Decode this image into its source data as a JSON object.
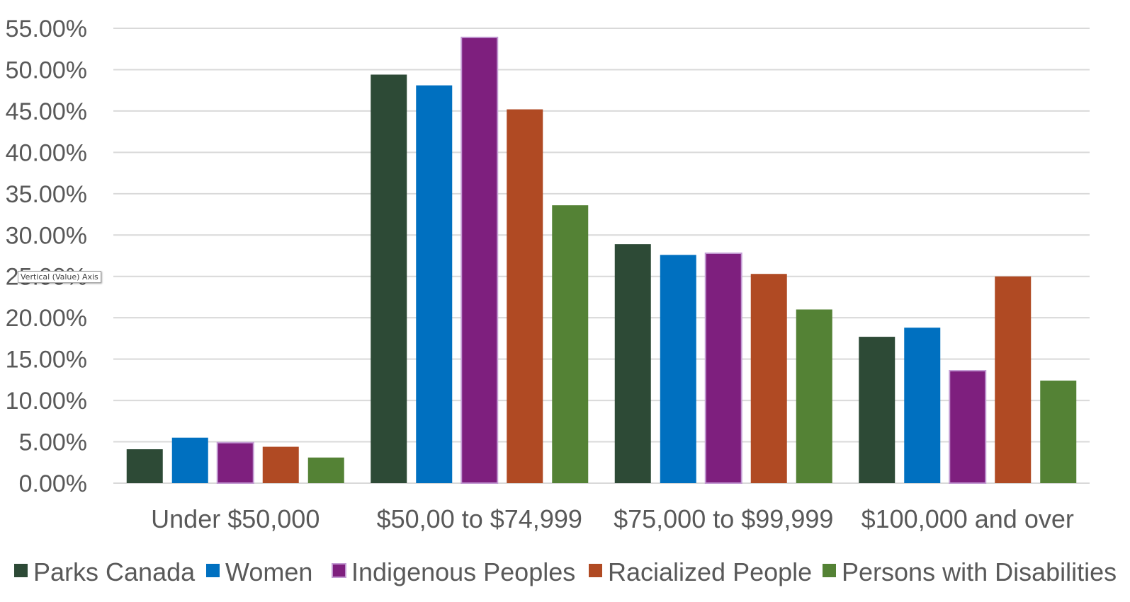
{
  "chart_data": {
    "type": "bar",
    "title": "",
    "xlabel": "",
    "ylabel": "",
    "ylim": [
      0,
      0.55
    ],
    "y_ticks": [
      0,
      0.05,
      0.1,
      0.15,
      0.2,
      0.25,
      0.3,
      0.35,
      0.4,
      0.45,
      0.5,
      0.55
    ],
    "y_tick_labels": [
      "0.00%",
      "5.00%",
      "10.00%",
      "15.00%",
      "20.00%",
      "25.00%",
      "30.00%",
      "35.00%",
      "40.00%",
      "45.00%",
      "50.00%",
      "55.00%"
    ],
    "grid": true,
    "legend_position": "bottom",
    "categories": [
      "Under $50,000",
      "$50,00 to $74,999",
      "$75,000 to $99,999",
      "$100,000 and over"
    ],
    "series": [
      {
        "name": "Parks Canada",
        "color": "#2d4a36",
        "values": [
          0.041,
          0.494,
          0.289,
          0.177
        ]
      },
      {
        "name": "Women",
        "color": "#0070c0",
        "values": [
          0.055,
          0.481,
          0.276,
          0.188
        ]
      },
      {
        "name": "Indigenous Peoples",
        "color": "#7e1f7e",
        "outline": "#c39bd3",
        "values": [
          0.049,
          0.539,
          0.278,
          0.136
        ]
      },
      {
        "name": "Racialized People",
        "color": "#b04a23",
        "values": [
          0.044,
          0.452,
          0.253,
          0.25
        ]
      },
      {
        "name": "Persons with Disabilities",
        "color": "#548235",
        "values": [
          0.031,
          0.336,
          0.21,
          0.124
        ]
      }
    ]
  },
  "tooltip": {
    "text": "Vertical (Value) Axis"
  }
}
